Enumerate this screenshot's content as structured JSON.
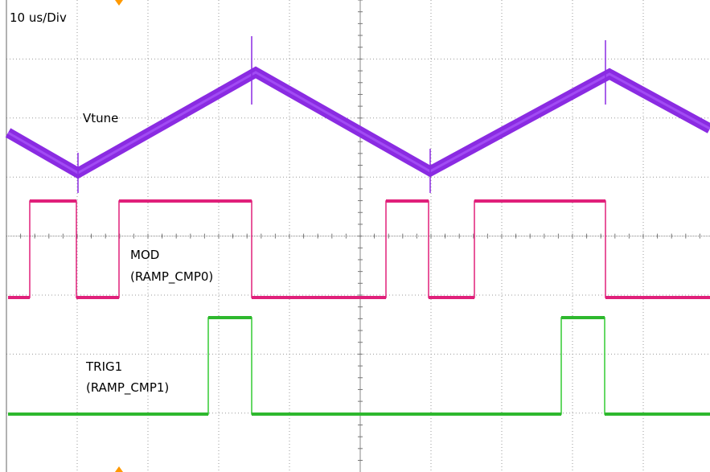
{
  "header": {
    "timebase": "10 us/Div"
  },
  "traces": [
    {
      "label": "Vtune"
    },
    {
      "label": "MOD",
      "sublabel": "(RAMP_CMP0)"
    },
    {
      "label": "TRIG1",
      "sublabel": "(RAMP_CMP1)"
    }
  ]
}
